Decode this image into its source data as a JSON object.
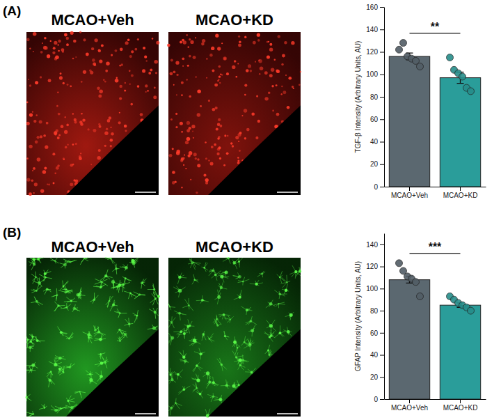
{
  "chart_data": [
    {
      "type": "bar",
      "panel_label": "(A)",
      "image_titles": [
        "MCAO+Veh",
        "MCAO+KD"
      ],
      "y_label": "TGF-β Intensity (Arbitrary Units, AU)",
      "categories": [
        "MCAO+Veh",
        "MCAO+KD"
      ],
      "values": [
        116,
        97
      ],
      "errors": [
        3,
        5
      ],
      "points": [
        [
          122,
          128,
          116,
          114,
          112,
          107
        ],
        [
          115,
          104,
          101,
          98,
          88,
          85
        ]
      ],
      "colors": [
        "#5b6870",
        "#2a9d9a"
      ],
      "ylim": [
        0,
        160
      ],
      "yticks": [
        0,
        20,
        40,
        60,
        80,
        100,
        120,
        140,
        160
      ],
      "annotations": [
        {
          "text": "**"
        }
      ]
    },
    {
      "type": "bar",
      "panel_label": "(B)",
      "image_titles": [
        "MCAO+Veh",
        "MCAO+KD"
      ],
      "y_label": "GFAP Intensity (Arbitrary Units, AU)",
      "categories": [
        "MCAO+Veh",
        "MCAO+KD"
      ],
      "values": [
        108,
        85
      ],
      "errors": [
        3,
        2
      ],
      "points": [
        [
          123,
          116,
          111,
          109,
          106,
          93
        ],
        [
          93,
          90,
          87,
          85,
          83,
          80
        ]
      ],
      "colors": [
        "#5b6870",
        "#2a9d9a"
      ],
      "ylim": [
        0,
        150
      ],
      "yticks": [
        0,
        20,
        40,
        60,
        80,
        100,
        120,
        140
      ],
      "annotations": [
        {
          "text": "***"
        }
      ]
    }
  ]
}
